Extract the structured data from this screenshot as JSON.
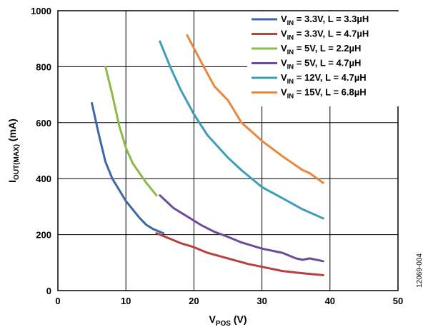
{
  "chart_data": {
    "type": "line",
    "xlabel_main": "V",
    "xlabel_sub": "POS",
    "xlabel_unit": " (V)",
    "ylabel_main": "I",
    "ylabel_sub": "OUT(MAX)",
    "ylabel_unit": " (mA)",
    "xlim": [
      0,
      50
    ],
    "ylim": [
      0,
      1000
    ],
    "xticks": [
      "0",
      "10",
      "20",
      "30",
      "40",
      "50"
    ],
    "yticks": [
      "0",
      "200",
      "400",
      "600",
      "800",
      "1000"
    ],
    "grid": true,
    "legend_position": "top-right",
    "figure_id": "12069-004",
    "series": [
      {
        "name": "V_IN = 3.3V, L = 3.3µH",
        "legend_main": "V",
        "legend_sub": "IN",
        "legend_rest": " = 3.3V, L = 3.3µH",
        "color": "#3d68a8",
        "points": [
          [
            5,
            670
          ],
          [
            6,
            560
          ],
          [
            7,
            460
          ],
          [
            8,
            400
          ],
          [
            9,
            360
          ],
          [
            10,
            320
          ],
          [
            11,
            290
          ],
          [
            12,
            260
          ],
          [
            13,
            235
          ],
          [
            14,
            220
          ],
          [
            15.5,
            205
          ]
        ]
      },
      {
        "name": "V_IN = 3.3V, L = 4.7µH",
        "legend_main": "V",
        "legend_sub": "IN",
        "legend_rest": " = 3.3V, L = 4.7µH",
        "color": "#b5413e",
        "points": [
          [
            14.5,
            205
          ],
          [
            16,
            190
          ],
          [
            18,
            170
          ],
          [
            20,
            155
          ],
          [
            22,
            135
          ],
          [
            25,
            115
          ],
          [
            28,
            95
          ],
          [
            30,
            85
          ],
          [
            33,
            70
          ],
          [
            36,
            62
          ],
          [
            39,
            55
          ]
        ]
      },
      {
        "name": "V_IN = 5V, L = 2.2µH",
        "legend_main": "V",
        "legend_sub": "IN",
        "legend_rest": " = 5V, L = 2.2µH",
        "color": "#8bbb45",
        "points": [
          [
            7,
            800
          ],
          [
            8,
            700
          ],
          [
            9,
            590
          ],
          [
            10,
            510
          ],
          [
            11,
            455
          ],
          [
            12,
            420
          ],
          [
            13,
            385
          ],
          [
            14.5,
            340
          ]
        ]
      },
      {
        "name": "V_IN = 5V, L = 4.7µH",
        "legend_main": "V",
        "legend_sub": "IN",
        "legend_rest": " = 5V, L = 4.7µH",
        "color": "#6a4c9c",
        "points": [
          [
            15,
            340
          ],
          [
            17,
            295
          ],
          [
            19,
            265
          ],
          [
            21,
            235
          ],
          [
            23,
            210
          ],
          [
            25,
            192
          ],
          [
            27,
            172
          ],
          [
            30,
            150
          ],
          [
            33,
            135
          ],
          [
            35,
            115
          ],
          [
            36,
            110
          ],
          [
            37,
            115
          ],
          [
            39,
            105
          ]
        ]
      },
      {
        "name": "V_IN = 12V, L = 4.7µH",
        "legend_main": "V",
        "legend_sub": "IN",
        "legend_rest": " = 12V, L = 4.7µH",
        "color": "#3d9dbb",
        "points": [
          [
            15,
            890
          ],
          [
            16.5,
            800
          ],
          [
            18,
            720
          ],
          [
            20,
            630
          ],
          [
            22,
            555
          ],
          [
            25,
            475
          ],
          [
            27,
            430
          ],
          [
            30,
            370
          ],
          [
            33,
            330
          ],
          [
            36,
            290
          ],
          [
            39,
            258
          ]
        ]
      },
      {
        "name": "V_IN = 15V, L = 6.8µH",
        "legend_main": "V",
        "legend_sub": "IN",
        "legend_rest": " = 15V, L = 6.8µH",
        "color": "#e9883d",
        "points": [
          [
            19,
            912
          ],
          [
            21,
            820
          ],
          [
            23,
            730
          ],
          [
            25,
            680
          ],
          [
            27,
            600
          ],
          [
            30,
            535
          ],
          [
            33,
            480
          ],
          [
            36,
            430
          ],
          [
            37,
            420
          ],
          [
            39,
            385
          ]
        ]
      }
    ]
  }
}
